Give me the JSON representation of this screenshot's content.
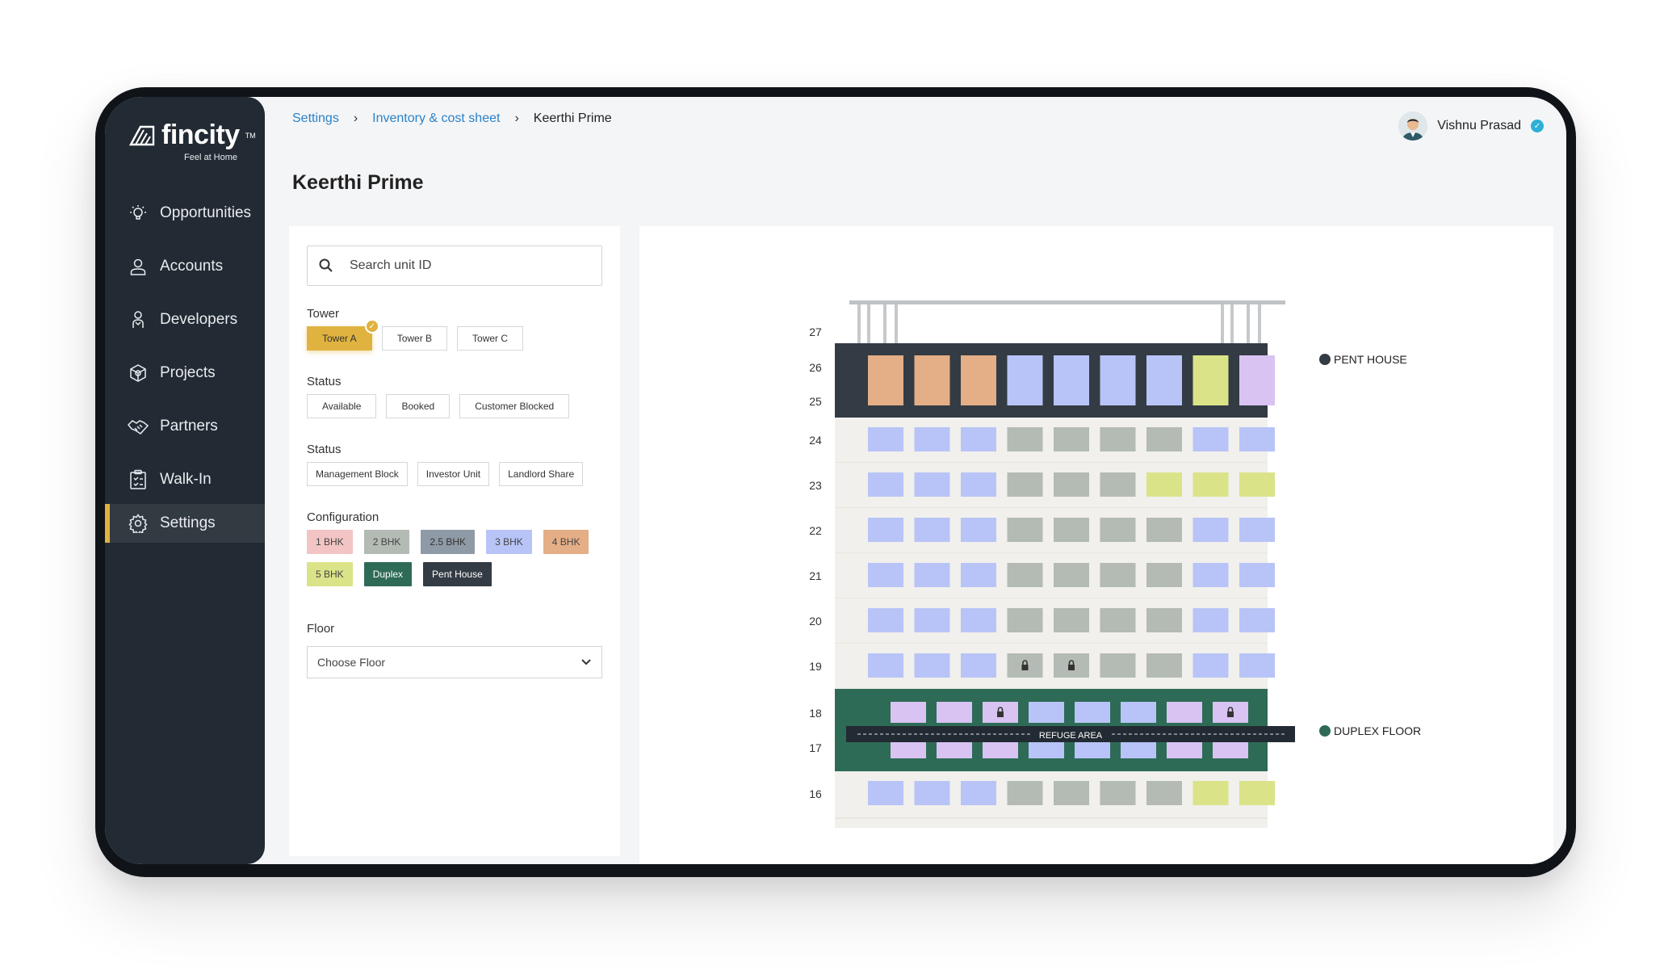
{
  "brand": {
    "name": "fincity",
    "tagline": "Feel at Home"
  },
  "sidebar": {
    "items": [
      {
        "label": "Opportunities",
        "icon": "lightbulb-icon"
      },
      {
        "label": "Accounts",
        "icon": "user-icon"
      },
      {
        "label": "Developers",
        "icon": "developer-icon"
      },
      {
        "label": "Projects",
        "icon": "cube-icon"
      },
      {
        "label": "Partners",
        "icon": "handshake-icon"
      },
      {
        "label": "Walk-In",
        "icon": "clipboard-icon"
      },
      {
        "label": "Settings",
        "icon": "gear-icon",
        "active": true
      }
    ]
  },
  "breadcrumb": {
    "items": [
      "Settings",
      "Inventory & cost sheet"
    ],
    "current": "Keerthi Prime"
  },
  "page": {
    "title": "Keerthi Prime"
  },
  "user": {
    "name": "Vishnu Prasad"
  },
  "filters": {
    "search": {
      "placeholder": "Search unit ID"
    },
    "tower": {
      "label": "Tower",
      "options": [
        "Tower A",
        "Tower B",
        "Tower C"
      ],
      "selected": "Tower A"
    },
    "status1": {
      "label": "Status",
      "options": [
        "Available",
        "Booked",
        "Customer Blocked"
      ]
    },
    "status2": {
      "label": "Status",
      "options": [
        "Management Block",
        "Investor Unit",
        "Landlord Share"
      ]
    },
    "configuration": {
      "label": "Configuration",
      "options": [
        {
          "label": "1 BHK",
          "color": "#f2c4c4",
          "text": "#444444"
        },
        {
          "label": "2 BHK",
          "color": "#b4bab4",
          "text": "#444444"
        },
        {
          "label": "2.5 BHK",
          "color": "#8e9aa6",
          "text": "#333333"
        },
        {
          "label": "3 BHK",
          "color": "#b8c4f7",
          "text": "#444444"
        },
        {
          "label": "4 BHK",
          "color": "#e4ae86",
          "text": "#444444"
        },
        {
          "label": "5 BHK",
          "color": "#dbe388",
          "text": "#444444"
        },
        {
          "label": "Duplex",
          "color": "#2e6b56",
          "text": "#ffffff"
        },
        {
          "label": "Pent House",
          "color": "#333b44",
          "text": "#ffffff"
        }
      ]
    },
    "floor": {
      "label": "Floor",
      "placeholder": "Choose Floor"
    }
  },
  "building": {
    "colors": {
      "c1": "#f2c4c4",
      "c2": "#b4bab4",
      "c3": "#b8c4f7",
      "c4": "#e4ae86",
      "c5": "#dbe388",
      "duplex": "#d8c3f2",
      "pent_bg": "#333b44",
      "duplex_bg": "#2e6b56",
      "floor_bg": "#f1f0ec"
    },
    "penthouse": {
      "floors": [
        "26",
        "25"
      ],
      "units": [
        "c4",
        "c4",
        "c4",
        "c3",
        "c3",
        "c3",
        "c3",
        "c5",
        "duplex"
      ],
      "legend": "PENT HOUSE"
    },
    "roof_floor": "27",
    "floors": [
      {
        "num": "24",
        "units": [
          "c3",
          "c3",
          "c3",
          "c2",
          "c2",
          "c2",
          "c2",
          "c3",
          "c3"
        ]
      },
      {
        "num": "23",
        "units": [
          "c3",
          "c3",
          "c3",
          "c2",
          "c2",
          "c2",
          "c5",
          "c5",
          "c5"
        ]
      },
      {
        "num": "22",
        "units": [
          "c3",
          "c3",
          "c3",
          "c2",
          "c2",
          "c2",
          "c2",
          "c3",
          "c3"
        ]
      },
      {
        "num": "21",
        "units": [
          "c3",
          "c3",
          "c3",
          "c2",
          "c2",
          "c2",
          "c2",
          "c3",
          "c3"
        ]
      },
      {
        "num": "20",
        "units": [
          "c3",
          "c3",
          "c3",
          "c2",
          "c2",
          "c2",
          "c2",
          "c3",
          "c3"
        ]
      },
      {
        "num": "19",
        "units": [
          "c3",
          "c3",
          "c3",
          "c2L",
          "c2L",
          "c2",
          "c2",
          "c3",
          "c3"
        ]
      }
    ],
    "duplex": {
      "floors": [
        "18",
        "17"
      ],
      "units": [
        "duplex",
        "duplex",
        "duplexL",
        "c3",
        "c3",
        "c3",
        "duplex",
        "duplexL"
      ],
      "refuge": "REFUGE AREA",
      "legend": "DUPLEX FLOOR"
    },
    "bottom_floor": {
      "num": "16",
      "units": [
        "c3",
        "c3",
        "c3",
        "c2",
        "c2",
        "c2",
        "c2",
        "c5",
        "c5"
      ]
    }
  }
}
